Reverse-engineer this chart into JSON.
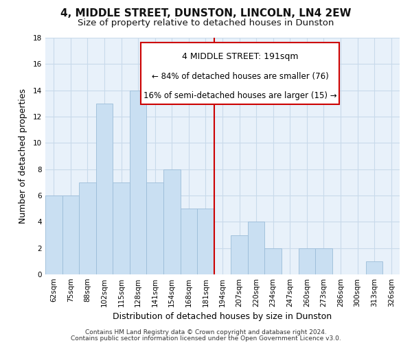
{
  "title": "4, MIDDLE STREET, DUNSTON, LINCOLN, LN4 2EW",
  "subtitle": "Size of property relative to detached houses in Dunston",
  "xlabel": "Distribution of detached houses by size in Dunston",
  "ylabel": "Number of detached properties",
  "categories": [
    "62sqm",
    "75sqm",
    "88sqm",
    "102sqm",
    "115sqm",
    "128sqm",
    "141sqm",
    "154sqm",
    "168sqm",
    "181sqm",
    "194sqm",
    "207sqm",
    "220sqm",
    "234sqm",
    "247sqm",
    "260sqm",
    "273sqm",
    "286sqm",
    "300sqm",
    "313sqm",
    "326sqm"
  ],
  "values": [
    6,
    6,
    7,
    13,
    7,
    14,
    7,
    8,
    5,
    5,
    0,
    3,
    4,
    2,
    0,
    2,
    2,
    0,
    0,
    1,
    0
  ],
  "bar_color": "#c9dff2",
  "bar_edge_color": "#9bbcd8",
  "vline_idx": 10,
  "vline_color": "#cc0000",
  "ylim": [
    0,
    18
  ],
  "yticks": [
    0,
    2,
    4,
    6,
    8,
    10,
    12,
    14,
    16,
    18
  ],
  "annotation_title": "4 MIDDLE STREET: 191sqm",
  "annotation_line1": "← 84% of detached houses are smaller (76)",
  "annotation_line2": "16% of semi-detached houses are larger (15) →",
  "annotation_box_color": "#ffffff",
  "annotation_box_edge": "#cc0000",
  "footer_line1": "Contains HM Land Registry data © Crown copyright and database right 2024.",
  "footer_line2": "Contains public sector information licensed under the Open Government Licence v3.0.",
  "background_color": "#ffffff",
  "plot_bg_color": "#e8f1fa",
  "grid_color": "#c8daea",
  "title_fontsize": 11,
  "subtitle_fontsize": 9.5,
  "axis_label_fontsize": 9,
  "tick_fontsize": 7.5,
  "annotation_title_fontsize": 9,
  "annotation_text_fontsize": 8.5,
  "footer_fontsize": 6.5
}
